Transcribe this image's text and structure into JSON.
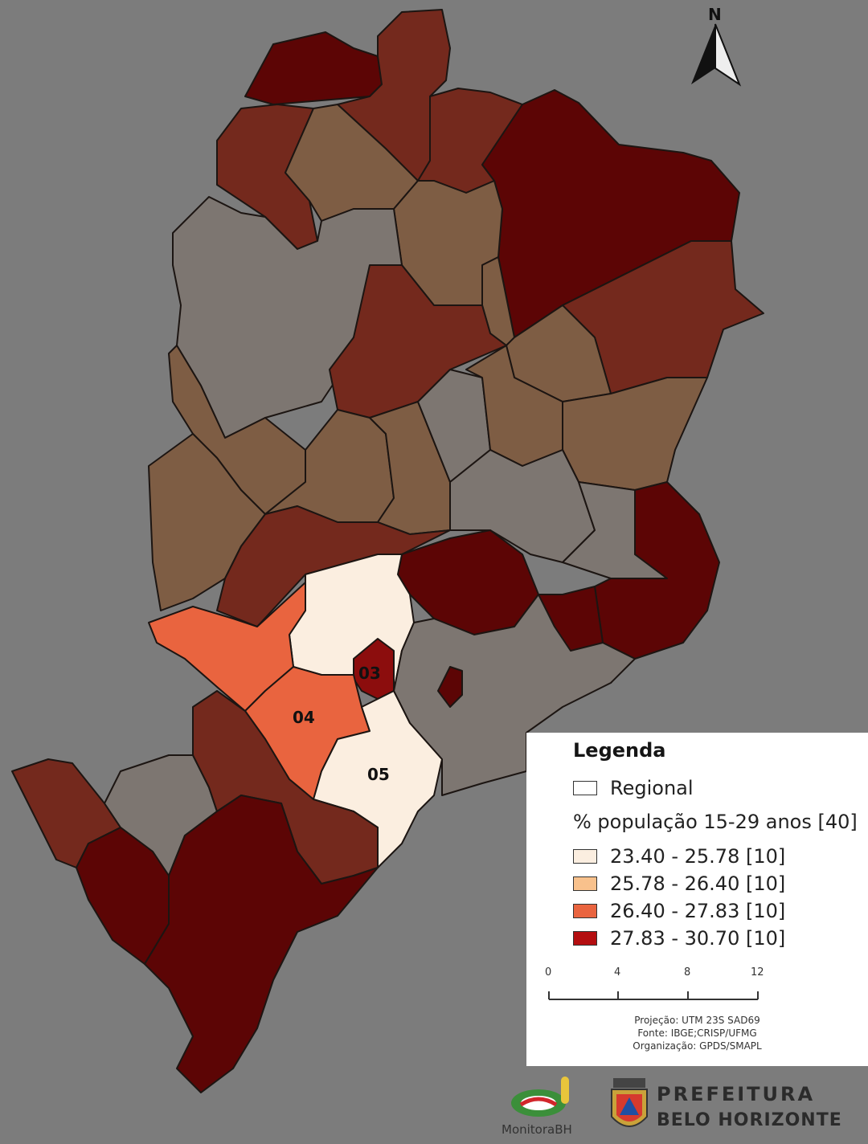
{
  "map": {
    "labels": [
      "03",
      "04",
      "05"
    ]
  },
  "north_arrow": {
    "label": "N"
  },
  "legend": {
    "title": "Legenda",
    "regional_label": "Regional",
    "subtitle": "% população 15-29 anos [40]",
    "classes": [
      {
        "label": "23.40 - 25.78  [10]",
        "color": "#fbeee0"
      },
      {
        "label": "25.78 - 26.40  [10]",
        "color": "#f8c18c"
      },
      {
        "label": "26.40 - 27.83  [10]",
        "color": "#e9643f"
      },
      {
        "label": "27.83 - 30.70  [10]",
        "color": "#b40e10"
      }
    ],
    "scale_bar": {
      "ticks": [
        "0",
        "4",
        "8",
        "12 km"
      ]
    },
    "credits": [
      "Projeção: UTM 23S SAD69",
      "Fonte: IBGE;CRISP/UFMG",
      "Organização: GPDS/SMAPL"
    ]
  },
  "logos": {
    "monitora": "MonitoraBH",
    "prefeitura_line1": "PREFEITURA",
    "prefeitura_line2": "BELO HORIZONTE"
  },
  "colors": {
    "background": "#7c7c7c",
    "dark_red": "#5c0505",
    "red_brown": "#74291d",
    "tan": "#7e5d44",
    "gray": "#7d7671"
  }
}
